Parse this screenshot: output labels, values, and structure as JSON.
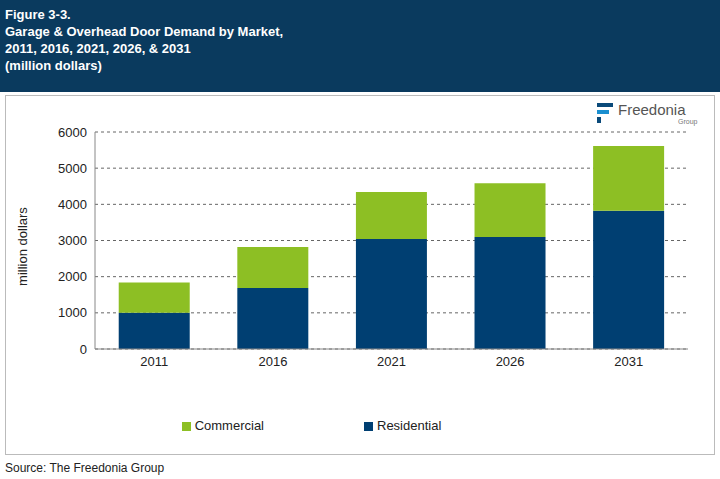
{
  "chart_data": {
    "type": "bar",
    "title": [
      "Garage & Overhead Door Demand by Market,",
      "2011, 2016, 2021, 2026, & 2031"
    ],
    "subtitle": "(million dollars)",
    "annotations": [
      "Figure 3-3.",
      "Source: The Freedonia Group",
      "Freedonia",
      "Group"
    ],
    "y_label": "million dollars",
    "categories": [
      "2011",
      "2016",
      "2021",
      "2026",
      "2031"
    ],
    "series": [
      {
        "name": "Residential",
        "color": "#003f72",
        "values": [
          1000,
          1690,
          3040,
          3100,
          3820
        ]
      },
      {
        "name": "Commercial",
        "color": "#8dbf24",
        "values": [
          840,
          1130,
          1300,
          1480,
          1790
        ]
      }
    ],
    "ylim": [
      0,
      6000
    ],
    "yticks": [
      0,
      1000,
      2000,
      3000,
      4000,
      5000,
      6000
    ],
    "grid": true,
    "stacked": true,
    "legend": "bottom"
  }
}
